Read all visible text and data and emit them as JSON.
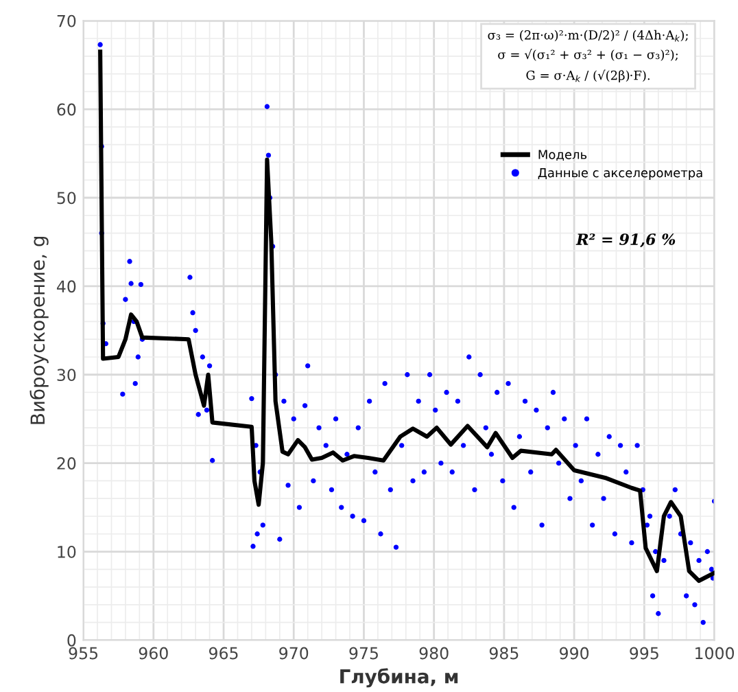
{
  "chart_data": {
    "type": "scatter",
    "xlabel": "Глубина, м",
    "ylabel": "Виброускорение, g",
    "xlim": [
      955,
      1000
    ],
    "ylim": [
      0,
      70
    ],
    "xticks": [
      955,
      960,
      965,
      970,
      975,
      980,
      985,
      990,
      995,
      1000
    ],
    "yticks": [
      0,
      10,
      20,
      30,
      40,
      50,
      60,
      70
    ],
    "grid": true,
    "legend": "top right",
    "annotations": [
      "σ₃ = (2π·ω)²·m·(D/2)² / (4Δh·A$_{k}$);",
      "σ = √(σ₁² + σ₃² + (σ₁ − σ₃)²);",
      "G = σ·A$_{k}$ / (√(2β)·F).",
      "R² = 91,6 %"
    ],
    "series": [
      {
        "name": "Модель",
        "type": "line",
        "color": "#000000",
        "marker": "none",
        "line_style": "solid",
        "x": [
          956.2,
          956.4,
          957.5,
          958.0,
          958.4,
          958.8,
          959.2,
          962.5,
          963.0,
          963.6,
          963.9,
          964.2,
          967.0,
          967.2,
          967.5,
          967.8,
          968.1,
          968.4,
          968.7,
          969.2,
          969.6,
          970.3,
          970.8,
          971.3,
          972.0,
          972.8,
          973.5,
          974.3,
          975.3,
          976.4,
          977.6,
          978.5,
          979.5,
          980.2,
          981.2,
          982.4,
          983.8,
          984.4,
          985.6,
          986.2,
          988.4,
          988.7,
          990.0,
          992.3,
          994.1,
          994.7,
          995.1,
          995.9,
          996.4,
          996.9,
          997.6,
          998.2,
          998.9,
          1000.0
        ],
        "values": [
          66.5,
          31.8,
          32,
          34,
          36.8,
          36,
          34.2,
          34,
          30,
          26.5,
          30,
          24.6,
          24.1,
          18,
          15.3,
          20,
          54.3,
          45,
          27,
          21.3,
          21,
          22.6,
          21.8,
          20.4,
          20.6,
          21.2,
          20.3,
          20.8,
          20.6,
          20.3,
          23,
          23.9,
          23,
          24,
          22.1,
          24.2,
          21.8,
          23.4,
          20.6,
          21.4,
          21,
          21.5,
          19.2,
          18.3,
          17.2,
          16.9,
          10.4,
          7.8,
          14,
          15.6,
          14,
          7.8,
          6.7,
          7.6
        ]
      },
      {
        "name": "Данные с акселерометра",
        "color": "#0000ff",
        "marker": "circle",
        "x": [
          956.2,
          956.3,
          956.3,
          956.4,
          956.6,
          957.8,
          958.0,
          958.3,
          958.4,
          958.6,
          958.7,
          958.9,
          959.1,
          959.2,
          962.6,
          962.8,
          963.0,
          963.2,
          963.5,
          963.8,
          964.0,
          964.2,
          967.0,
          967.1,
          967.3,
          967.4,
          967.6,
          967.8,
          968.1,
          968.2,
          968.3,
          968.5,
          968.7,
          969.0,
          969.3,
          969.6,
          970.0,
          970.4,
          970.8,
          971.0,
          971.4,
          971.8,
          972.3,
          972.7,
          973.0,
          973.4,
          973.8,
          974.2,
          974.6,
          975.0,
          975.4,
          975.8,
          976.2,
          976.5,
          976.9,
          977.3,
          977.7,
          978.1,
          978.5,
          978.9,
          979.3,
          979.7,
          980.1,
          980.5,
          980.9,
          981.3,
          981.7,
          982.1,
          982.5,
          982.9,
          983.3,
          983.7,
          984.1,
          984.5,
          984.9,
          985.3,
          985.7,
          986.1,
          986.5,
          986.9,
          987.3,
          987.7,
          988.1,
          988.5,
          988.9,
          989.3,
          989.7,
          990.1,
          990.5,
          990.9,
          991.3,
          991.7,
          992.1,
          992.5,
          992.9,
          993.3,
          993.7,
          994.1,
          994.5,
          994.9,
          995.2,
          995.4,
          995.6,
          995.8,
          996.0,
          996.4,
          996.8,
          997.2,
          997.6,
          998.0,
          998.3,
          998.6,
          998.9,
          999.2,
          999.5,
          999.8,
          999.9,
          1000.0
        ],
        "values": [
          67.3,
          55.8,
          46,
          35.8,
          33.5,
          27.8,
          38.5,
          42.8,
          40.3,
          36,
          29,
          32,
          40.2,
          34,
          41,
          37,
          35,
          25.5,
          32,
          26,
          31,
          20.3,
          27.3,
          10.6,
          22,
          12,
          19,
          13,
          60.3,
          54.8,
          50,
          44.5,
          30,
          11.4,
          27,
          17.5,
          25,
          15,
          26.5,
          31,
          18,
          24,
          22,
          17,
          25,
          15,
          21,
          14,
          24,
          13.5,
          27,
          19,
          12,
          29,
          17,
          10.5,
          22,
          30,
          18,
          27,
          19,
          30,
          26,
          20,
          28,
          19,
          27,
          22,
          32,
          17,
          30,
          24,
          21,
          28,
          18,
          29,
          15,
          23,
          27,
          19,
          26,
          13,
          24,
          28,
          20,
          25,
          16,
          22,
          18,
          25,
          13,
          21,
          16,
          23,
          12,
          22,
          19,
          11,
          22,
          17,
          13,
          14,
          5,
          10,
          3,
          9,
          14,
          17,
          12,
          5,
          11,
          4,
          9,
          2,
          10,
          8,
          7,
          15.7
        ]
      }
    ]
  }
}
